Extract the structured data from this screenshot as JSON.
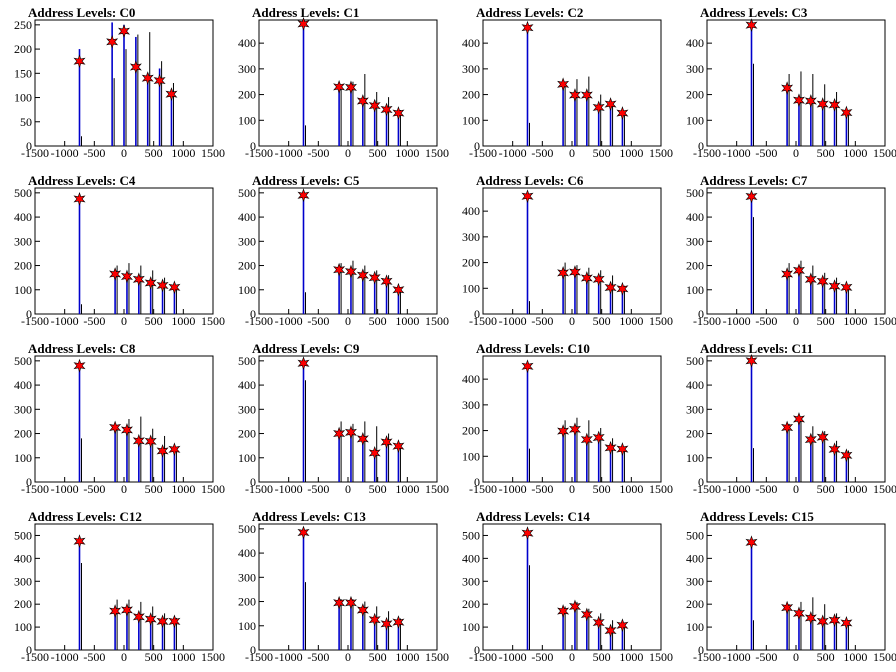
{
  "panels": [
    {
      "title": "Address Levels: C0",
      "ylim": [
        0,
        260
      ],
      "yticks": [
        0,
        50,
        100,
        150,
        200,
        250
      ],
      "peaks": [
        {
          "x": -750,
          "blue": 200,
          "black": 20,
          "star": 175
        },
        {
          "x": -200,
          "blue": 255,
          "black": 140,
          "star": 215
        },
        {
          "x": 0,
          "blue": 250,
          "black": 200,
          "star": 237
        },
        {
          "x": 200,
          "blue": 225,
          "black": 230,
          "star": 163
        },
        {
          "x": 400,
          "blue": 150,
          "black": 235,
          "star": 140
        },
        {
          "x": 600,
          "blue": 160,
          "black": 175,
          "star": 135
        },
        {
          "x": 800,
          "blue": 110,
          "black": 130,
          "star": 107
        }
      ]
    },
    {
      "title": "Address Levels: C1",
      "ylim": [
        0,
        490
      ],
      "yticks": [
        0,
        100,
        200,
        300,
        400
      ],
      "peaks": [
        {
          "x": -750,
          "blue": 480,
          "black": 80,
          "star": 475
        },
        {
          "x": -150,
          "blue": 230,
          "black": 220,
          "star": 230
        },
        {
          "x": 50,
          "blue": 240,
          "black": 250,
          "star": 228
        },
        {
          "x": 250,
          "blue": 170,
          "black": 280,
          "star": 175
        },
        {
          "x": 450,
          "blue": 150,
          "black": 210,
          "star": 157
        },
        {
          "x": 650,
          "blue": 140,
          "black": 190,
          "star": 142
        },
        {
          "x": 850,
          "blue": 130,
          "black": 140,
          "star": 128
        }
      ]
    },
    {
      "title": "Address Levels: C2",
      "ylim": [
        0,
        490
      ],
      "yticks": [
        0,
        100,
        200,
        300,
        400
      ],
      "peaks": [
        {
          "x": -750,
          "blue": 470,
          "black": 90,
          "star": 460
        },
        {
          "x": -150,
          "blue": 250,
          "black": 230,
          "star": 240
        },
        {
          "x": 50,
          "blue": 210,
          "black": 260,
          "star": 198
        },
        {
          "x": 250,
          "blue": 200,
          "black": 270,
          "star": 198
        },
        {
          "x": 450,
          "blue": 150,
          "black": 200,
          "star": 150
        },
        {
          "x": 650,
          "blue": 160,
          "black": 170,
          "star": 163
        },
        {
          "x": 850,
          "blue": 130,
          "black": 120,
          "star": 128
        }
      ]
    },
    {
      "title": "Address Levels: C3",
      "ylim": [
        0,
        490
      ],
      "yticks": [
        0,
        100,
        200,
        300,
        400
      ],
      "peaks": [
        {
          "x": -750,
          "blue": 480,
          "black": 320,
          "star": 470
        },
        {
          "x": -150,
          "blue": 220,
          "black": 280,
          "star": 225
        },
        {
          "x": 50,
          "blue": 180,
          "black": 290,
          "star": 178
        },
        {
          "x": 250,
          "blue": 180,
          "black": 280,
          "star": 175
        },
        {
          "x": 450,
          "blue": 160,
          "black": 240,
          "star": 163
        },
        {
          "x": 650,
          "blue": 170,
          "black": 210,
          "star": 160
        },
        {
          "x": 850,
          "blue": 130,
          "black": 130,
          "star": 130
        }
      ]
    },
    {
      "title": "Address Levels: C4",
      "ylim": [
        0,
        520
      ],
      "yticks": [
        0,
        100,
        200,
        300,
        400,
        500
      ],
      "peaks": [
        {
          "x": -750,
          "blue": 480,
          "black": 40,
          "star": 475
        },
        {
          "x": -150,
          "blue": 170,
          "black": 200,
          "star": 165
        },
        {
          "x": 50,
          "blue": 160,
          "black": 210,
          "star": 155
        },
        {
          "x": 250,
          "blue": 150,
          "black": 200,
          "star": 143
        },
        {
          "x": 450,
          "blue": 130,
          "black": 180,
          "star": 128
        },
        {
          "x": 650,
          "blue": 120,
          "black": 150,
          "star": 118
        },
        {
          "x": 850,
          "blue": 110,
          "black": 120,
          "star": 110
        }
      ]
    },
    {
      "title": "Address Levels: C5",
      "ylim": [
        0,
        520
      ],
      "yticks": [
        0,
        100,
        200,
        300,
        400,
        500
      ],
      "peaks": [
        {
          "x": -750,
          "blue": 500,
          "black": 90,
          "star": 490
        },
        {
          "x": -150,
          "blue": 190,
          "black": 210,
          "star": 183
        },
        {
          "x": 50,
          "blue": 180,
          "black": 220,
          "star": 175
        },
        {
          "x": 250,
          "blue": 160,
          "black": 200,
          "star": 160
        },
        {
          "x": 450,
          "blue": 150,
          "black": 180,
          "star": 150
        },
        {
          "x": 650,
          "blue": 140,
          "black": 160,
          "star": 135
        },
        {
          "x": 850,
          "blue": 100,
          "black": 110,
          "star": 100
        }
      ]
    },
    {
      "title": "Address Levels: C6",
      "ylim": [
        0,
        490
      ],
      "yticks": [
        0,
        100,
        200,
        300,
        400
      ],
      "peaks": [
        {
          "x": -750,
          "blue": 460,
          "black": 50,
          "star": 458
        },
        {
          "x": -150,
          "blue": 160,
          "black": 200,
          "star": 160
        },
        {
          "x": 50,
          "blue": 170,
          "black": 190,
          "star": 163
        },
        {
          "x": 250,
          "blue": 150,
          "black": 180,
          "star": 140
        },
        {
          "x": 450,
          "blue": 130,
          "black": 170,
          "star": 135
        },
        {
          "x": 650,
          "blue": 110,
          "black": 150,
          "star": 103
        },
        {
          "x": 850,
          "blue": 100,
          "black": 110,
          "star": 98
        }
      ]
    },
    {
      "title": "Address Levels: C7",
      "ylim": [
        0,
        520
      ],
      "yticks": [
        0,
        100,
        200,
        300,
        400,
        500
      ],
      "peaks": [
        {
          "x": -750,
          "blue": 490,
          "black": 400,
          "star": 485
        },
        {
          "x": -150,
          "blue": 170,
          "black": 210,
          "star": 165
        },
        {
          "x": 50,
          "blue": 190,
          "black": 220,
          "star": 180
        },
        {
          "x": 250,
          "blue": 150,
          "black": 200,
          "star": 143
        },
        {
          "x": 450,
          "blue": 140,
          "black": 170,
          "star": 135
        },
        {
          "x": 650,
          "blue": 120,
          "black": 150,
          "star": 115
        },
        {
          "x": 850,
          "blue": 110,
          "black": 120,
          "star": 110
        }
      ]
    },
    {
      "title": "Address Levels: C8",
      "ylim": [
        0,
        520
      ],
      "yticks": [
        0,
        100,
        200,
        300,
        400,
        500
      ],
      "peaks": [
        {
          "x": -750,
          "blue": 480,
          "black": 180,
          "star": 480
        },
        {
          "x": -150,
          "blue": 230,
          "black": 230,
          "star": 225
        },
        {
          "x": 50,
          "blue": 220,
          "black": 260,
          "star": 215
        },
        {
          "x": 250,
          "blue": 180,
          "black": 270,
          "star": 170
        },
        {
          "x": 450,
          "blue": 170,
          "black": 220,
          "star": 168
        },
        {
          "x": 650,
          "blue": 130,
          "black": 190,
          "star": 128
        },
        {
          "x": 850,
          "blue": 140,
          "black": 140,
          "star": 135
        }
      ]
    },
    {
      "title": "Address Levels: C9",
      "ylim": [
        0,
        520
      ],
      "yticks": [
        0,
        100,
        200,
        300,
        400,
        500
      ],
      "peaks": [
        {
          "x": -750,
          "blue": 490,
          "black": 420,
          "star": 490
        },
        {
          "x": -150,
          "blue": 200,
          "black": 250,
          "star": 200
        },
        {
          "x": 50,
          "blue": 210,
          "black": 240,
          "star": 205
        },
        {
          "x": 250,
          "blue": 180,
          "black": 250,
          "star": 178
        },
        {
          "x": 450,
          "blue": 130,
          "black": 230,
          "star": 120
        },
        {
          "x": 650,
          "blue": 170,
          "black": 200,
          "star": 165
        },
        {
          "x": 850,
          "blue": 150,
          "black": 160,
          "star": 148
        }
      ]
    },
    {
      "title": "Address Levels: C10",
      "ylim": [
        0,
        490
      ],
      "yticks": [
        0,
        100,
        200,
        300,
        400
      ],
      "peaks": [
        {
          "x": -750,
          "blue": 460,
          "black": 130,
          "star": 450
        },
        {
          "x": -150,
          "blue": 200,
          "black": 240,
          "star": 198
        },
        {
          "x": 50,
          "blue": 210,
          "black": 250,
          "star": 205
        },
        {
          "x": 250,
          "blue": 170,
          "black": 240,
          "star": 165
        },
        {
          "x": 450,
          "blue": 180,
          "black": 210,
          "star": 173
        },
        {
          "x": 650,
          "blue": 140,
          "black": 170,
          "star": 133
        },
        {
          "x": 850,
          "blue": 130,
          "black": 130,
          "star": 128
        }
      ]
    },
    {
      "title": "Address Levels: C11",
      "ylim": [
        0,
        520
      ],
      "yticks": [
        0,
        100,
        200,
        300,
        400,
        500
      ],
      "peaks": [
        {
          "x": -750,
          "blue": 500,
          "black": 140,
          "star": 500
        },
        {
          "x": -150,
          "blue": 230,
          "black": 240,
          "star": 225
        },
        {
          "x": 50,
          "blue": 260,
          "black": 260,
          "star": 260
        },
        {
          "x": 250,
          "blue": 180,
          "black": 230,
          "star": 175
        },
        {
          "x": 450,
          "blue": 190,
          "black": 210,
          "star": 185
        },
        {
          "x": 650,
          "blue": 140,
          "black": 170,
          "star": 135
        },
        {
          "x": 850,
          "blue": 110,
          "black": 130,
          "star": 110
        }
      ]
    },
    {
      "title": "Address Levels: C12",
      "ylim": [
        0,
        550
      ],
      "yticks": [
        0,
        100,
        200,
        300,
        400,
        500
      ],
      "peaks": [
        {
          "x": -750,
          "blue": 480,
          "black": 380,
          "star": 475
        },
        {
          "x": -150,
          "blue": 170,
          "black": 220,
          "star": 170
        },
        {
          "x": 50,
          "blue": 180,
          "black": 220,
          "star": 175
        },
        {
          "x": 250,
          "blue": 150,
          "black": 210,
          "star": 145
        },
        {
          "x": 450,
          "blue": 140,
          "black": 190,
          "star": 135
        },
        {
          "x": 650,
          "blue": 130,
          "black": 160,
          "star": 125
        },
        {
          "x": 850,
          "blue": 120,
          "black": 140,
          "star": 125
        }
      ]
    },
    {
      "title": "Address Levels: C13",
      "ylim": [
        0,
        520
      ],
      "yticks": [
        0,
        100,
        200,
        300,
        400,
        500
      ],
      "peaks": [
        {
          "x": -750,
          "blue": 490,
          "black": 280,
          "star": 485
        },
        {
          "x": -150,
          "blue": 200,
          "black": 210,
          "star": 195
        },
        {
          "x": 50,
          "blue": 200,
          "black": 210,
          "star": 195
        },
        {
          "x": 250,
          "blue": 170,
          "black": 200,
          "star": 165
        },
        {
          "x": 450,
          "blue": 130,
          "black": 180,
          "star": 125
        },
        {
          "x": 650,
          "blue": 110,
          "black": 160,
          "star": 108
        },
        {
          "x": 850,
          "blue": 110,
          "black": 130,
          "star": 115
        }
      ]
    },
    {
      "title": "Address Levels: C14",
      "ylim": [
        0,
        550
      ],
      "yticks": [
        0,
        100,
        200,
        300,
        400,
        500
      ],
      "peaks": [
        {
          "x": -750,
          "blue": 510,
          "black": 370,
          "star": 510
        },
        {
          "x": -150,
          "blue": 180,
          "black": 190,
          "star": 170
        },
        {
          "x": 50,
          "blue": 200,
          "black": 210,
          "star": 190
        },
        {
          "x": 250,
          "blue": 160,
          "black": 180,
          "star": 155
        },
        {
          "x": 450,
          "blue": 120,
          "black": 160,
          "star": 120
        },
        {
          "x": 650,
          "blue": 90,
          "black": 130,
          "star": 85
        },
        {
          "x": 850,
          "blue": 110,
          "black": 120,
          "star": 108
        }
      ]
    },
    {
      "title": "Address Levels: C15",
      "ylim": [
        0,
        550
      ],
      "yticks": [
        0,
        100,
        200,
        300,
        400,
        500
      ],
      "peaks": [
        {
          "x": -750,
          "blue": 480,
          "black": 130,
          "star": 470
        },
        {
          "x": -150,
          "blue": 190,
          "black": 200,
          "star": 185
        },
        {
          "x": 50,
          "blue": 170,
          "black": 210,
          "star": 160
        },
        {
          "x": 250,
          "blue": 150,
          "black": 230,
          "star": 140
        },
        {
          "x": 450,
          "blue": 130,
          "black": 200,
          "star": 125
        },
        {
          "x": 650,
          "blue": 140,
          "black": 160,
          "star": 130
        },
        {
          "x": 850,
          "blue": 120,
          "black": 130,
          "star": 118
        }
      ]
    }
  ],
  "xlim": [
    -1500,
    1500
  ],
  "xtick_labels": [
    "-1500",
    "-1000",
    "-500",
    "0",
    "500",
    "1000",
    "1500"
  ],
  "colors": {
    "blue": "#0000cc",
    "black": "#000000",
    "star": "#ff0000",
    "frame": "#000000"
  },
  "chart_data": {
    "type": "bar",
    "description_series": [
      "blue histogram",
      "black histogram",
      "red star markers"
    ]
  }
}
